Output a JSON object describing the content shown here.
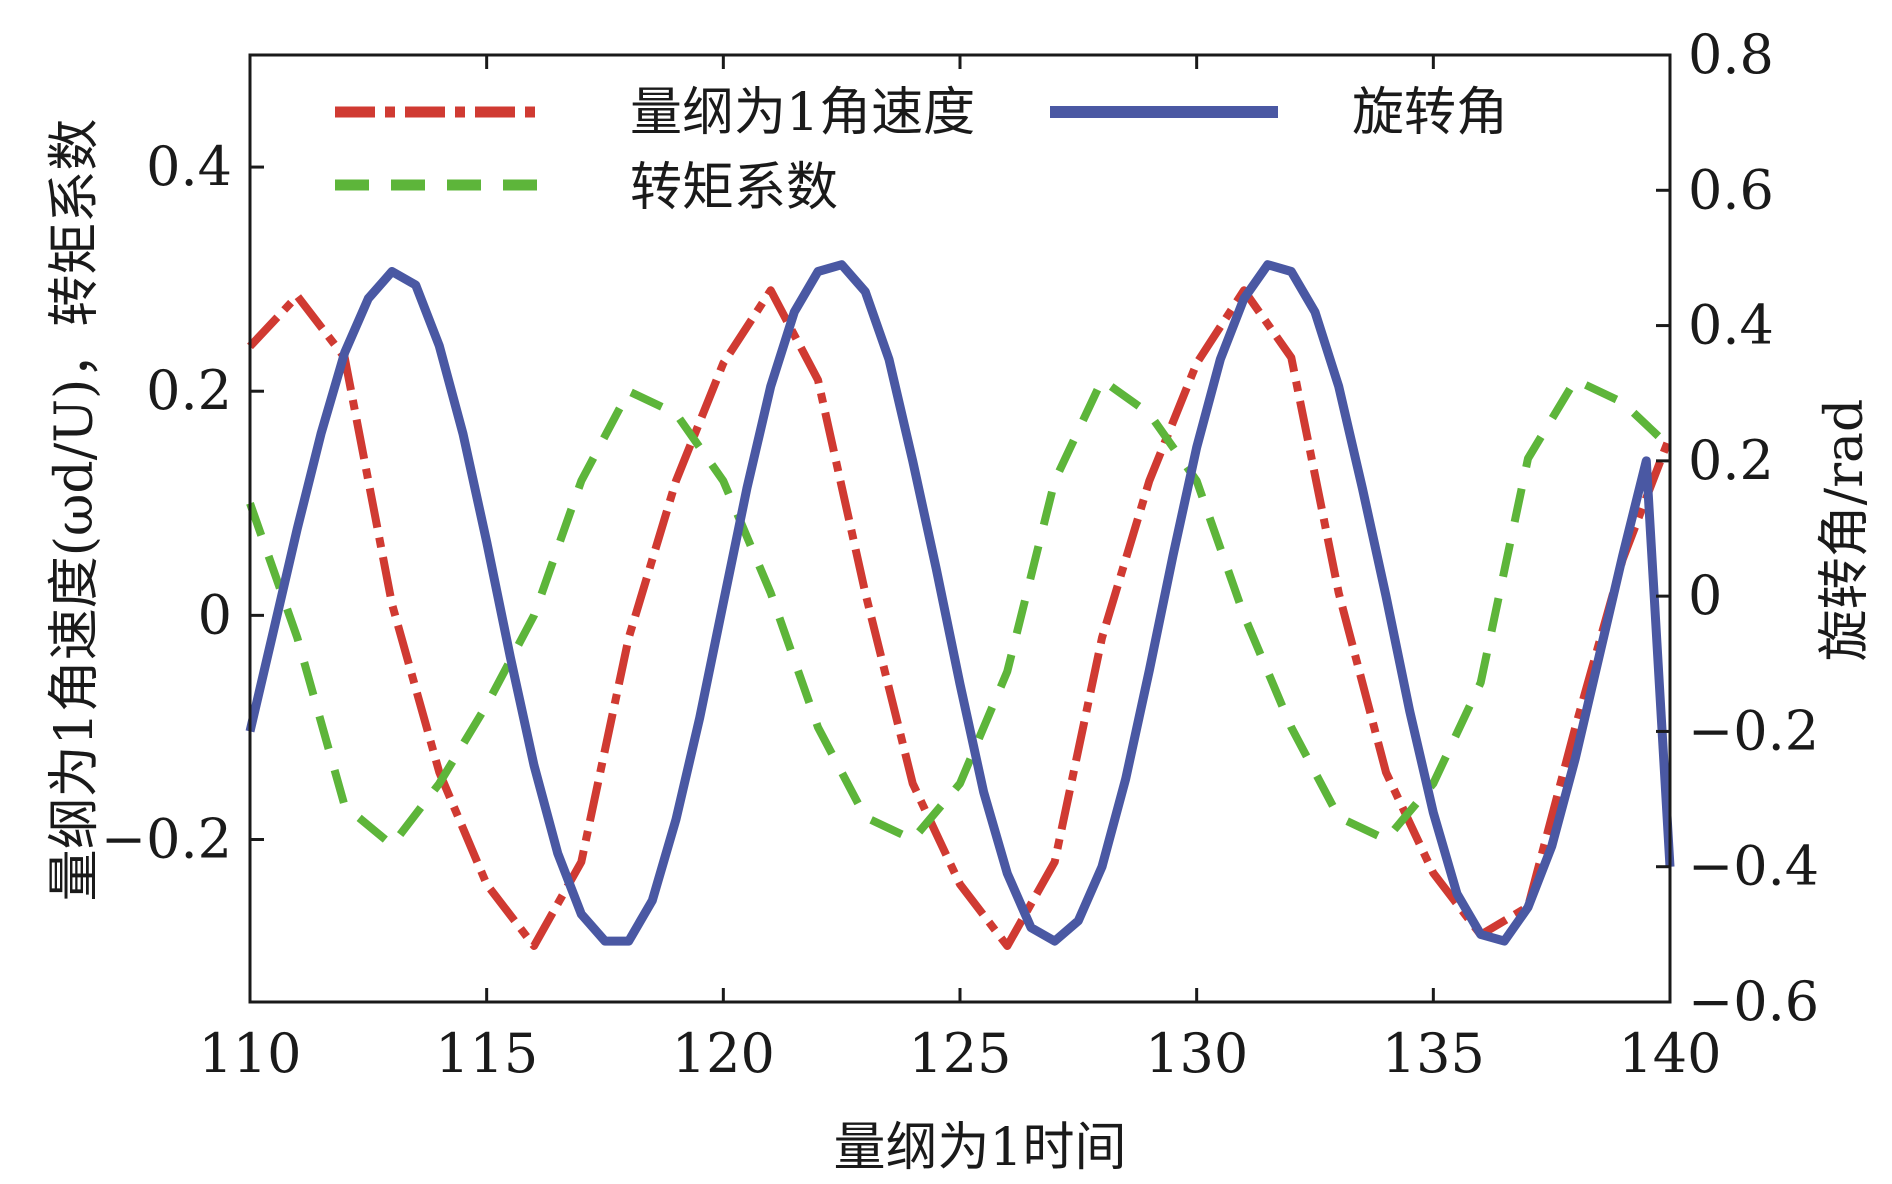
{
  "chart_data": {
    "type": "line",
    "xlabel": "量纲为1时间",
    "ylabel_left": "量纲为1角速度(ωd/U)，转矩系数",
    "ylabel_right": "旋转角/rad",
    "xlim": [
      110,
      140
    ],
    "ylim_left": [
      -0.345,
      0.5
    ],
    "ylim_right": [
      -0.6,
      0.8
    ],
    "x_ticks": [
      110,
      115,
      120,
      125,
      130,
      135,
      140
    ],
    "y_left_ticks": [
      -0.2,
      0,
      0.2,
      0.4
    ],
    "y_right_ticks": [
      -0.6,
      -0.4,
      -0.2,
      0,
      0.2,
      0.4,
      0.6,
      0.8
    ],
    "x_tick_labels": [
      "110",
      "115",
      "120",
      "125",
      "130",
      "135",
      "140"
    ],
    "y_left_tick_labels": [
      "−0.2",
      "0",
      "0.2",
      "0.4"
    ],
    "y_right_tick_labels": [
      "−0.6",
      "−0.4",
      "−0.2",
      "0",
      "0.2",
      "0.4",
      "0.6",
      "0.8"
    ],
    "grid": false,
    "legend_position": "top",
    "series": [
      {
        "name": "量纲为1角速度",
        "axis": "left",
        "color": "#d03a32",
        "style": "dash-dot",
        "x": [
          110,
          111,
          112,
          113,
          114,
          115,
          116,
          117,
          118,
          119,
          120,
          121,
          122,
          123,
          124,
          125,
          126,
          127,
          128,
          129,
          130,
          131,
          132,
          133,
          134,
          135,
          136,
          137,
          138,
          139,
          140
        ],
        "y": [
          0.24,
          0.285,
          0.23,
          0.01,
          -0.14,
          -0.24,
          -0.295,
          -0.22,
          -0.02,
          0.12,
          0.225,
          0.29,
          0.21,
          0.02,
          -0.15,
          -0.24,
          -0.295,
          -0.22,
          -0.02,
          0.12,
          0.225,
          0.29,
          0.23,
          0.02,
          -0.14,
          -0.23,
          -0.285,
          -0.26,
          -0.1,
          0.05,
          0.16
        ]
      },
      {
        "name": "转矩系数",
        "axis": "left",
        "color": "#5db53a",
        "style": "dashed",
        "x": [
          110,
          111,
          112,
          113,
          114,
          115,
          116,
          117,
          118,
          119,
          120,
          121,
          122,
          123,
          124,
          125,
          126,
          127,
          128,
          129,
          130,
          131,
          132,
          133,
          134,
          135,
          136,
          137,
          138,
          139,
          140
        ],
        "y": [
          0.1,
          -0.02,
          -0.17,
          -0.205,
          -0.15,
          -0.08,
          0.0,
          0.12,
          0.2,
          0.18,
          0.12,
          0.02,
          -0.1,
          -0.18,
          -0.2,
          -0.15,
          -0.05,
          0.12,
          0.21,
          0.18,
          0.12,
          0.0,
          -0.1,
          -0.18,
          -0.2,
          -0.15,
          -0.06,
          0.14,
          0.21,
          0.19,
          0.15
        ]
      },
      {
        "name": "旋转角",
        "axis": "right",
        "color": "#4a58a3",
        "style": "solid",
        "x": [
          110,
          110.5,
          111,
          111.5,
          112,
          112.5,
          113,
          113.5,
          114,
          114.5,
          115,
          115.5,
          116,
          116.5,
          117,
          117.5,
          118,
          118.5,
          119,
          119.5,
          120,
          120.5,
          121,
          121.5,
          122,
          122.5,
          123,
          123.5,
          124,
          124.5,
          125,
          125.5,
          126,
          126.5,
          127,
          127.5,
          128,
          128.5,
          129,
          129.5,
          130,
          130.5,
          131,
          131.5,
          132,
          132.5,
          133,
          133.5,
          134,
          134.5,
          135,
          135.5,
          136,
          136.5,
          137,
          137.5,
          138,
          138.5,
          139,
          139.5,
          140
        ],
        "y": [
          -0.2,
          -0.05,
          0.1,
          0.24,
          0.36,
          0.44,
          0.48,
          0.46,
          0.37,
          0.24,
          0.08,
          -0.09,
          -0.25,
          -0.38,
          -0.47,
          -0.51,
          -0.51,
          -0.45,
          -0.33,
          -0.18,
          -0.01,
          0.16,
          0.31,
          0.42,
          0.48,
          0.49,
          0.45,
          0.35,
          0.2,
          0.04,
          -0.13,
          -0.29,
          -0.41,
          -0.49,
          -0.51,
          -0.48,
          -0.4,
          -0.27,
          -0.11,
          0.06,
          0.22,
          0.35,
          0.44,
          0.49,
          0.48,
          0.42,
          0.31,
          0.16,
          0.0,
          -0.17,
          -0.32,
          -0.44,
          -0.5,
          -0.51,
          -0.46,
          -0.37,
          -0.24,
          -0.09,
          0.06,
          0.2,
          -0.4
        ]
      }
    ]
  }
}
